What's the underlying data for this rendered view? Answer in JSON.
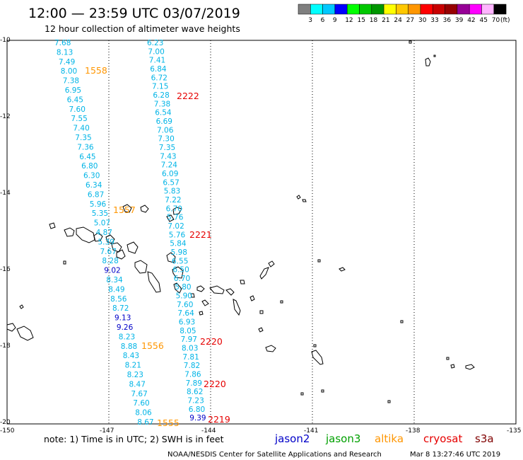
{
  "title": "12:00 — 23:59 UTC 03/07/2019",
  "subtitle": "12 hour collection of altimeter wave heights",
  "colorbar": {
    "labels": [
      "3",
      "6",
      "9",
      "12",
      "15",
      "18",
      "21",
      "24",
      "27",
      "30",
      "33",
      "36",
      "39",
      "42",
      "45",
      "70"
    ],
    "unit": "(ft)",
    "colors": [
      "#7f7f7f",
      "#00ffff",
      "#00c8ff",
      "#0000ff",
      "#00ff00",
      "#00c800",
      "#009600",
      "#ffff00",
      "#ffc800",
      "#ff9600",
      "#ff0000",
      "#c80000",
      "#960000",
      "#960096",
      "#ff00ff",
      "#ffb4ff",
      "#000000"
    ]
  },
  "axes": {
    "lat_labels": [
      "-10",
      "-12",
      "-14",
      "-16",
      "-18",
      "-20"
    ],
    "lon_labels": [
      "-150",
      "-147",
      "-144",
      "-141",
      "-138",
      "-135"
    ]
  },
  "track_colors": {
    "light": "#00b4e6",
    "dark": "#0000c8",
    "orange": "#ff9600",
    "red": "#e60000"
  },
  "tracks": [
    {
      "id": "left",
      "values": [
        "7.68",
        "8.13",
        "7.49",
        "8.00",
        "7.38",
        "6.95",
        "6.45",
        "7.60",
        "7.55",
        "7.40",
        "7.35",
        "7.36",
        "6.45",
        "6.80",
        "6.30",
        "6.34",
        "6.87",
        "5.96",
        "5.35",
        "5.07",
        "4.87",
        "5.39",
        "7.67",
        "8.28",
        "9.02",
        "8.34",
        "8.49",
        "8.56",
        "8.72",
        "9.13",
        "9.26",
        "8.23",
        "8.88",
        "8.43",
        "8.21",
        "8.23",
        "8.47",
        "7.67",
        "7.60",
        "8.06",
        "8.67"
      ],
      "dark": [
        "9.02",
        "9.13",
        "9.26"
      ]
    },
    {
      "id": "right",
      "values": [
        "6.23",
        "7.00",
        "7.41",
        "6.84",
        "6.72",
        "7.15",
        "6.28",
        "7.38",
        "6.54",
        "6.69",
        "7.06",
        "7.30",
        "7.35",
        "7.43",
        "7.24",
        "6.09",
        "6.57",
        "5.83",
        "7.22",
        "6.70",
        "5.76",
        "7.02",
        "5.76",
        "5.84",
        "5.98",
        "6.55",
        "6.50",
        "6.70",
        "5.80",
        "5.90",
        "7.60",
        "7.64",
        "6.93",
        "8.05",
        "7.97",
        "8.03",
        "7.81",
        "7.82",
        "7.86",
        "7.89",
        "8.62",
        "7.23",
        "6.80",
        "9.39"
      ],
      "dark": [
        "9.39"
      ]
    }
  ],
  "pass_labels": [
    {
      "text": "1558",
      "color": "orange"
    },
    {
      "text": "2222",
      "color": "red"
    },
    {
      "text": "1557",
      "color": "orange"
    },
    {
      "text": "2221",
      "color": "red"
    },
    {
      "text": "1556",
      "color": "orange"
    },
    {
      "text": "2220",
      "color": "red"
    },
    {
      "text": "2220",
      "color": "red"
    },
    {
      "text": "1555",
      "color": "orange"
    },
    {
      "text": "2219",
      "color": "red"
    }
  ],
  "note": "note:  1) Time is in UTC;  2) SWH is in feet",
  "legend": [
    {
      "name": "jason2",
      "color": "#0000c8"
    },
    {
      "name": "jason3",
      "color": "#00a000"
    },
    {
      "name": "altika",
      "color": "#ff9600"
    },
    {
      "name": "cryosat",
      "color": "#e60000"
    },
    {
      "name": "s3a",
      "color": "#800000"
    }
  ],
  "footer": {
    "source": "NOAA/NESDIS Center for Satellite Applications and Research",
    "timestamp": "Mar  8 13:27:46 UTC 2019"
  }
}
